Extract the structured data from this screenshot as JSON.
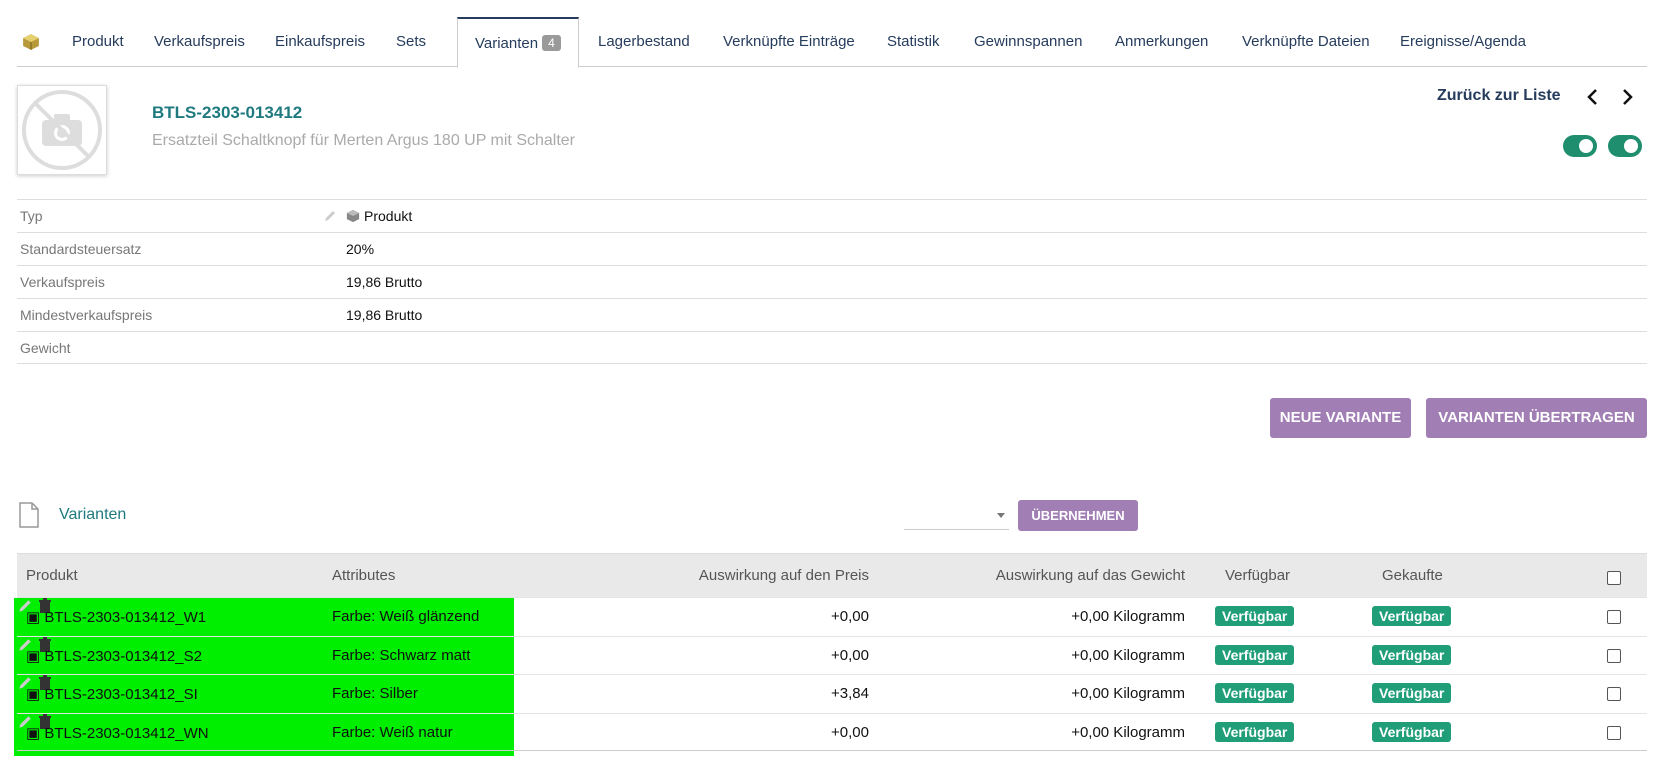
{
  "tabs": [
    {
      "label": "Produkt"
    },
    {
      "label": "Verkaufspreis"
    },
    {
      "label": "Einkaufspreis"
    },
    {
      "label": "Sets"
    },
    {
      "label": "Varianten",
      "badge": "4",
      "active": true
    },
    {
      "label": "Lagerbestand"
    },
    {
      "label": "Verknüpfte Einträge"
    },
    {
      "label": "Statistik"
    },
    {
      "label": "Gewinnspannen"
    },
    {
      "label": "Anmerkungen"
    },
    {
      "label": "Verknüpfte Dateien"
    },
    {
      "label": "Ereignisse/Agenda"
    }
  ],
  "header": {
    "ref": "BTLS-2303-013412",
    "label": "Ersatzteil Schaltknopf für Merten Argus 180 UP mit Schalter",
    "back_link": "Zurück zur Liste"
  },
  "properties": [
    {
      "name": "Typ",
      "value": "Produkt"
    },
    {
      "name": "Standardsteuersatz",
      "value": "20%"
    },
    {
      "name": "Verkaufspreis",
      "value": "19,86 Brutto"
    },
    {
      "name": "Mindestverkaufspreis",
      "value": "19,86 Brutto"
    },
    {
      "name": "Gewicht",
      "value": ""
    }
  ],
  "buttons": {
    "new_variant": "NEUE VARIANTE",
    "transfer_variants": "VARIANTEN ÜBERTRAGEN",
    "apply": "ÜBERNEHMEN"
  },
  "variants": {
    "title": "Varianten",
    "columns": {
      "product": "Produkt",
      "attributes": "Attributes",
      "price_impact": "Auswirkung auf den Preis",
      "weight_impact": "Auswirkung auf das Gewicht",
      "available": "Verfügbar",
      "purchased": "Gekaufte"
    },
    "rows": [
      {
        "product": "BTLS-2303-013412_W1",
        "attributes": "Farbe: Weiß glänzend",
        "price": "+0,00",
        "weight": "+0,00 Kilogramm",
        "available": "Verfügbar",
        "purchased": "Verfügbar"
      },
      {
        "product": "BTLS-2303-013412_S2",
        "attributes": "Farbe: Schwarz matt",
        "price": "+0,00",
        "weight": "+0,00 Kilogramm",
        "available": "Verfügbar",
        "purchased": "Verfügbar"
      },
      {
        "product": "BTLS-2303-013412_SI",
        "attributes": "Farbe: Silber",
        "price": "+3,84",
        "weight": "+0,00 Kilogramm",
        "available": "Verfügbar",
        "purchased": "Verfügbar"
      },
      {
        "product": "BTLS-2303-013412_WN",
        "attributes": "Farbe: Weiß natur",
        "price": "+0,00",
        "weight": "+0,00 Kilogramm",
        "available": "Verfügbar",
        "purchased": "Verfügbar"
      }
    ]
  },
  "icons": {
    "tab_logo": "cube-icon",
    "edit": "pencil-icon",
    "delete": "trash-icon",
    "prev": "chevron-left-icon",
    "next": "chevron-right-icon",
    "doc": "document-icon",
    "photo": "no-photo-icon"
  },
  "colors": {
    "accent": "#1f7a80",
    "status": "#1f9e78",
    "button": "#a17fb5",
    "highlight": "#00ee00",
    "nav": "#263c5c"
  }
}
